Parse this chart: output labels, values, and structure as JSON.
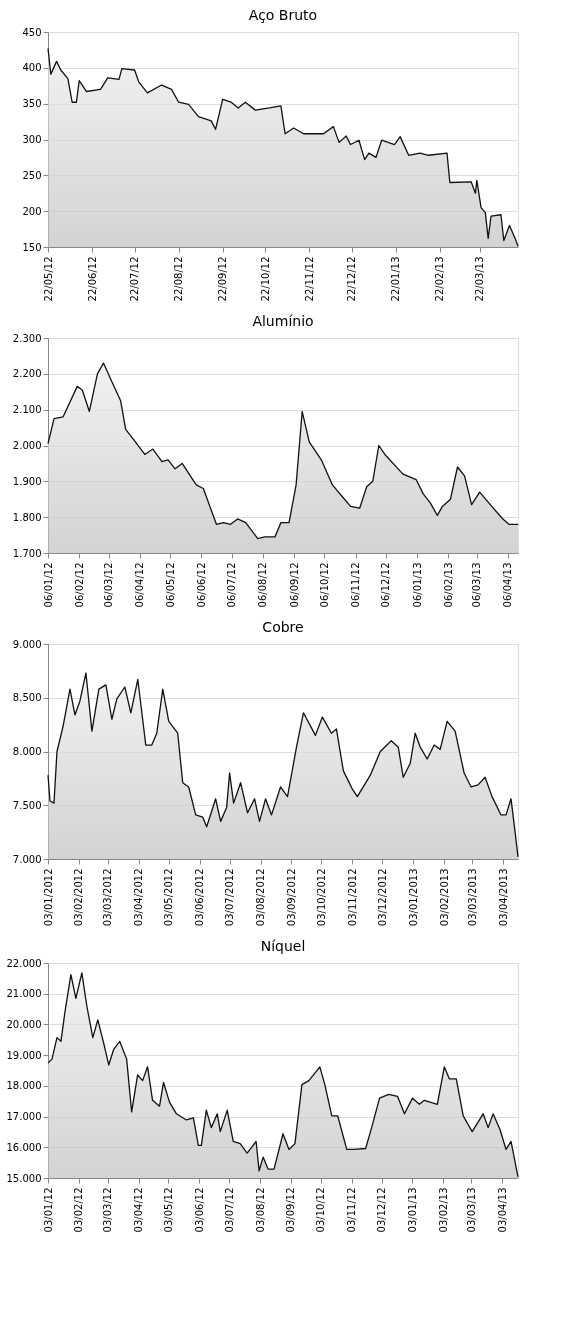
{
  "chart_data": [
    {
      "type": "area",
      "title": "Aço Bruto",
      "grid": "y",
      "xlim": [
        "2012-05-22",
        "2013-04-18"
      ],
      "ylim": [
        150,
        450
      ],
      "yticks": [
        150,
        200,
        250,
        300,
        350,
        400,
        450
      ],
      "xticks": [
        {
          "value": "2012-05-22",
          "label": "22/05/12"
        },
        {
          "value": "2012-06-22",
          "label": "22/06/12"
        },
        {
          "value": "2012-07-22",
          "label": "22/07/12"
        },
        {
          "value": "2012-08-22",
          "label": "22/08/12"
        },
        {
          "value": "2012-09-22",
          "label": "22/09/12"
        },
        {
          "value": "2012-10-22",
          "label": "22/10/12"
        },
        {
          "value": "2012-11-22",
          "label": "22/11/12"
        },
        {
          "value": "2012-12-22",
          "label": "22/12/12"
        },
        {
          "value": "2013-01-22",
          "label": "22/01/13"
        },
        {
          "value": "2013-02-22",
          "label": "22/02/13"
        },
        {
          "value": "2013-03-22",
          "label": "22/03/13"
        }
      ],
      "series": [
        {
          "color": "#c0c0c0",
          "x": [
            "2012-05-22",
            "2012-05-24",
            "2012-05-28",
            "2012-05-31",
            "2012-06-05",
            "2012-06-08",
            "2012-06-11",
            "2012-06-13",
            "2012-06-18",
            "2012-06-28",
            "2012-07-03",
            "2012-07-11",
            "2012-07-13",
            "2012-07-22",
            "2012-07-25",
            "2012-07-31",
            "2012-08-10",
            "2012-08-17",
            "2012-08-22",
            "2012-08-29",
            "2012-09-05",
            "2012-09-14",
            "2012-09-17",
            "2012-09-22",
            "2012-09-28",
            "2012-10-03",
            "2012-10-08",
            "2012-10-15",
            "2012-10-25",
            "2012-11-02",
            "2012-11-05",
            "2012-11-11",
            "2012-11-18",
            "2012-12-02",
            "2012-12-09",
            "2012-12-13",
            "2012-12-18",
            "2012-12-21",
            "2012-12-27",
            "2012-12-31",
            "2013-01-03",
            "2013-01-08",
            "2013-01-12",
            "2013-01-21",
            "2013-01-25",
            "2013-01-31",
            "2013-02-08",
            "2013-02-14",
            "2013-02-27",
            "2013-03-01",
            "2013-03-16",
            "2013-03-19",
            "2013-03-20",
            "2013-03-23",
            "2013-03-26",
            "2013-03-28",
            "2013-03-30",
            "2013-04-06",
            "2013-04-08",
            "2013-04-12",
            "2013-04-16",
            "2013-04-18"
          ],
          "values": [
            427,
            391,
            409,
            397,
            385,
            352,
            352,
            382,
            367,
            370,
            386,
            384,
            399,
            397,
            380,
            365,
            376,
            370,
            352,
            349,
            332,
            326,
            314,
            356,
            352,
            344,
            352,
            341,
            344,
            347,
            308,
            316,
            308,
            308,
            318,
            296,
            305,
            293,
            299,
            272,
            281,
            275,
            299,
            293,
            304,
            278,
            281,
            278,
            281,
            240,
            241,
            225,
            243,
            205,
            198,
            162,
            193,
            195,
            159,
            180,
            162,
            151
          ]
        }
      ]
    },
    {
      "type": "area",
      "title": "Alumínio",
      "grid": "y",
      "xlim": [
        "2012-01-06",
        "2013-04-16"
      ],
      "ylim": [
        1700,
        2300
      ],
      "yticks": [
        {
          "value": 1700,
          "label": "1.700"
        },
        {
          "value": 1800,
          "label": "1.800"
        },
        {
          "value": 1900,
          "label": "1.900"
        },
        {
          "value": 2000,
          "label": "2.000"
        },
        {
          "value": 2100,
          "label": "2.100"
        },
        {
          "value": 2200,
          "label": "2.200"
        },
        {
          "value": 2300,
          "label": "2.300"
        }
      ],
      "xticks": [
        {
          "value": "2012-01-06",
          "label": "06/01/12"
        },
        {
          "value": "2012-02-06",
          "label": "06/02/12"
        },
        {
          "value": "2012-03-06",
          "label": "06/03/12"
        },
        {
          "value": "2012-04-06",
          "label": "06/04/12"
        },
        {
          "value": "2012-05-06",
          "label": "06/05/12"
        },
        {
          "value": "2012-06-06",
          "label": "06/06/12"
        },
        {
          "value": "2012-07-06",
          "label": "06/07/12"
        },
        {
          "value": "2012-08-06",
          "label": "06/08/12"
        },
        {
          "value": "2012-09-06",
          "label": "06/09/12"
        },
        {
          "value": "2012-10-06",
          "label": "06/10/12"
        },
        {
          "value": "2012-11-06",
          "label": "06/11/12"
        },
        {
          "value": "2012-12-06",
          "label": "06/12/12"
        },
        {
          "value": "2013-01-06",
          "label": "06/01/13"
        },
        {
          "value": "2013-02-06",
          "label": "06/02/13"
        },
        {
          "value": "2013-03-06",
          "label": "06/03/13"
        },
        {
          "value": "2013-04-06",
          "label": "06/04/13"
        }
      ],
      "series": [
        {
          "color": "#c0c0c0",
          "x": [
            "2012-01-06",
            "2012-01-12",
            "2012-01-21",
            "2012-02-04",
            "2012-02-09",
            "2012-02-16",
            "2012-02-24",
            "2012-03-01",
            "2012-03-09",
            "2012-03-18",
            "2012-03-23",
            "2012-03-30",
            "2012-04-11",
            "2012-04-19",
            "2012-04-28",
            "2012-05-04",
            "2012-05-11",
            "2012-05-18",
            "2012-06-01",
            "2012-06-08",
            "2012-06-21",
            "2012-06-28",
            "2012-07-05",
            "2012-07-12",
            "2012-07-20",
            "2012-08-01",
            "2012-08-08",
            "2012-08-18",
            "2012-08-24",
            "2012-09-01",
            "2012-09-08",
            "2012-09-14",
            "2012-09-21",
            "2012-10-03",
            "2012-10-14",
            "2012-10-26",
            "2012-11-01",
            "2012-11-10",
            "2012-11-17",
            "2012-11-23",
            "2012-11-29",
            "2012-12-05",
            "2012-12-23",
            "2013-01-05",
            "2013-01-12",
            "2013-01-19",
            "2013-01-26",
            "2013-01-31",
            "2013-02-08",
            "2013-02-15",
            "2013-02-22",
            "2013-03-01",
            "2013-03-09",
            "2013-03-21",
            "2013-04-01",
            "2013-04-07",
            "2013-04-16"
          ],
          "values": [
            2005,
            2075,
            2080,
            2165,
            2155,
            2095,
            2200,
            2230,
            2180,
            2125,
            2045,
            2020,
            1975,
            1990,
            1955,
            1960,
            1935,
            1950,
            1890,
            1880,
            1780,
            1785,
            1780,
            1795,
            1785,
            1740,
            1745,
            1745,
            1785,
            1785,
            1890,
            2095,
            2010,
            1960,
            1890,
            1850,
            1830,
            1825,
            1885,
            1900,
            2000,
            1975,
            1920,
            1905,
            1865,
            1840,
            1805,
            1830,
            1850,
            1940,
            1915,
            1835,
            1870,
            1830,
            1795,
            1780,
            1780
          ]
        }
      ]
    },
    {
      "type": "area",
      "title": "Cobre",
      "grid": "y",
      "xlim": [
        "2012-01-03",
        "2013-04-18"
      ],
      "ylim": [
        7000,
        9000
      ],
      "yticks": [
        {
          "value": 7000,
          "label": "7.000"
        },
        {
          "value": 7500,
          "label": "7.500"
        },
        {
          "value": 8000,
          "label": "8.000"
        },
        {
          "value": 8500,
          "label": "8.500"
        },
        {
          "value": 9000,
          "label": "9.000"
        }
      ],
      "xticks": [
        {
          "value": "2012-01-03",
          "label": "03/01/2012"
        },
        {
          "value": "2012-02-03",
          "label": "03/02/2012"
        },
        {
          "value": "2012-03-03",
          "label": "03/03/2012"
        },
        {
          "value": "2012-04-03",
          "label": "03/04/2012"
        },
        {
          "value": "2012-05-03",
          "label": "03/05/2012"
        },
        {
          "value": "2012-06-03",
          "label": "03/06/2012"
        },
        {
          "value": "2012-07-03",
          "label": "03/07/2012"
        },
        {
          "value": "2012-08-03",
          "label": "03/08/2012"
        },
        {
          "value": "2012-09-03",
          "label": "03/09/2012"
        },
        {
          "value": "2012-10-03",
          "label": "03/10/2012"
        },
        {
          "value": "2012-11-03",
          "label": "03/11/2012"
        },
        {
          "value": "2012-12-03",
          "label": "03/12/2012"
        },
        {
          "value": "2013-01-03",
          "label": "03/01/2013"
        },
        {
          "value": "2013-02-03",
          "label": "03/02/2013"
        },
        {
          "value": "2013-03-03",
          "label": "03/03/2013"
        },
        {
          "value": "2013-04-03",
          "label": "03/04/2013"
        }
      ],
      "series": [
        {
          "color": "#c0c0c0",
          "x": [
            "2012-01-03",
            "2012-01-05",
            "2012-01-09",
            "2012-01-12",
            "2012-01-18",
            "2012-01-25",
            "2012-01-30",
            "2012-02-04",
            "2012-02-10",
            "2012-02-16",
            "2012-02-23",
            "2012-03-01",
            "2012-03-07",
            "2012-03-12",
            "2012-03-20",
            "2012-03-26",
            "2012-04-02",
            "2012-04-10",
            "2012-04-16",
            "2012-04-21",
            "2012-04-27",
            "2012-05-03",
            "2012-05-12",
            "2012-05-17",
            "2012-05-23",
            "2012-05-30",
            "2012-06-06",
            "2012-06-10",
            "2012-06-19",
            "2012-06-24",
            "2012-06-30",
            "2012-07-03",
            "2012-07-07",
            "2012-07-14",
            "2012-07-21",
            "2012-07-28",
            "2012-08-02",
            "2012-08-08",
            "2012-08-14",
            "2012-08-23",
            "2012-08-30",
            "2012-09-08",
            "2012-09-15",
            "2012-09-27",
            "2012-10-04",
            "2012-10-13",
            "2012-10-18",
            "2012-10-25",
            "2012-11-03",
            "2012-11-08",
            "2012-11-21",
            "2012-12-01",
            "2012-12-12",
            "2012-12-19",
            "2012-12-24",
            "2012-12-31",
            "2013-01-05",
            "2013-01-10",
            "2013-01-17",
            "2013-01-24",
            "2013-01-30",
            "2013-02-06",
            "2013-02-14",
            "2013-02-23",
            "2013-03-02",
            "2013-03-09",
            "2013-03-16",
            "2013-03-23",
            "2013-04-01",
            "2013-04-06",
            "2013-04-11",
            "2013-04-15",
            "2013-04-18"
          ],
          "values": [
            7780,
            7540,
            7520,
            8000,
            8230,
            8580,
            8340,
            8470,
            8730,
            8190,
            8580,
            8620,
            8300,
            8490,
            8600,
            8360,
            8670,
            8060,
            8060,
            8170,
            8580,
            8280,
            8170,
            7710,
            7670,
            7410,
            7390,
            7300,
            7560,
            7350,
            7480,
            7800,
            7520,
            7710,
            7430,
            7560,
            7350,
            7560,
            7410,
            7670,
            7580,
            8040,
            8360,
            8150,
            8320,
            8170,
            8210,
            7820,
            7650,
            7580,
            7780,
            8000,
            8100,
            8040,
            7760,
            7890,
            8170,
            8040,
            7930,
            8060,
            8020,
            8280,
            8190,
            7800,
            7670,
            7690,
            7760,
            7580,
            7410,
            7410,
            7560,
            7260,
            7020
          ]
        }
      ]
    },
    {
      "type": "area",
      "title": "Níquel",
      "grid": "y",
      "xlim": [
        "2012-01-03",
        "2013-04-19"
      ],
      "ylim": [
        15000,
        22000
      ],
      "yticks": [
        {
          "value": 15000,
          "label": "15.000"
        },
        {
          "value": 16000,
          "label": "16.000"
        },
        {
          "value": 17000,
          "label": "17.000"
        },
        {
          "value": 18000,
          "label": "18.000"
        },
        {
          "value": 19000,
          "label": "19.000"
        },
        {
          "value": 20000,
          "label": "20.000"
        },
        {
          "value": 21000,
          "label": "21.000"
        },
        {
          "value": 22000,
          "label": "22.000"
        }
      ],
      "xticks": [
        {
          "value": "2012-01-03",
          "label": "03/01/12"
        },
        {
          "value": "2012-02-03",
          "label": "03/02/12"
        },
        {
          "value": "2012-03-03",
          "label": "03/03/12"
        },
        {
          "value": "2012-04-03",
          "label": "03/04/12"
        },
        {
          "value": "2012-05-03",
          "label": "03/05/12"
        },
        {
          "value": "2012-06-03",
          "label": "03/06/12"
        },
        {
          "value": "2012-07-03",
          "label": "03/07/12"
        },
        {
          "value": "2012-08-03",
          "label": "03/08/12"
        },
        {
          "value": "2012-09-03",
          "label": "03/09/12"
        },
        {
          "value": "2012-10-03",
          "label": "03/10/12"
        },
        {
          "value": "2012-11-03",
          "label": "03/11/12"
        },
        {
          "value": "2012-12-03",
          "label": "03/12/12"
        },
        {
          "value": "2013-01-03",
          "label": "03/01/13"
        },
        {
          "value": "2013-02-03",
          "label": "03/02/13"
        },
        {
          "value": "2013-03-03",
          "label": "03/03/13"
        },
        {
          "value": "2013-04-03",
          "label": "03/04/13"
        }
      ],
      "series": [
        {
          "color": "#c0c0c0",
          "x": [
            "2012-01-03",
            "2012-01-07",
            "2012-01-12",
            "2012-01-16",
            "2012-01-20",
            "2012-01-26",
            "2012-01-31",
            "2012-02-06",
            "2012-02-11",
            "2012-02-17",
            "2012-02-22",
            "2012-02-28",
            "2012-03-04",
            "2012-03-09",
            "2012-03-15",
            "2012-03-22",
            "2012-03-27",
            "2012-04-02",
            "2012-04-07",
            "2012-04-12",
            "2012-04-17",
            "2012-04-24",
            "2012-04-28",
            "2012-05-04",
            "2012-05-11",
            "2012-05-21",
            "2012-05-28",
            "2012-06-02",
            "2012-06-05",
            "2012-06-10",
            "2012-06-15",
            "2012-06-21",
            "2012-06-24",
            "2012-07-01",
            "2012-07-07",
            "2012-07-14",
            "2012-07-21",
            "2012-07-30",
            "2012-08-02",
            "2012-08-06",
            "2012-08-11",
            "2012-08-17",
            "2012-08-26",
            "2012-09-01",
            "2012-09-07",
            "2012-09-14",
            "2012-09-21",
            "2012-10-02",
            "2012-10-07",
            "2012-10-14",
            "2012-10-20",
            "2012-10-29",
            "2012-11-05",
            "2012-11-17",
            "2012-11-23",
            "2012-12-01",
            "2012-12-10",
            "2012-12-19",
            "2012-12-26",
            "2013-01-03",
            "2013-01-10",
            "2013-01-15",
            "2013-01-28",
            "2013-02-04",
            "2013-02-09",
            "2013-02-16",
            "2013-02-23",
            "2013-03-04",
            "2013-03-15",
            "2013-03-20",
            "2013-03-25",
            "2013-04-01",
            "2013-04-07",
            "2013-04-12",
            "2013-04-19"
          ],
          "values": [
            18740,
            18870,
            19570,
            19450,
            20400,
            21620,
            20850,
            21680,
            20600,
            19570,
            20150,
            19380,
            18680,
            19190,
            19450,
            18870,
            17150,
            18360,
            18170,
            18620,
            17530,
            17340,
            18110,
            17470,
            17090,
            16890,
            16960,
            16060,
            16060,
            17210,
            16640,
            17090,
            16510,
            17210,
            16190,
            16120,
            15810,
            16190,
            15230,
            15680,
            15290,
            15290,
            16440,
            15930,
            16120,
            18040,
            18170,
            18620,
            18040,
            17020,
            17020,
            15930,
            15930,
            15960,
            16640,
            17600,
            17720,
            17660,
            17090,
            17600,
            17400,
            17530,
            17400,
            18620,
            18230,
            18230,
            17020,
            16510,
            17090,
            16640,
            17090,
            16570,
            15930,
            16190,
            15040
          ]
        }
      ]
    }
  ]
}
